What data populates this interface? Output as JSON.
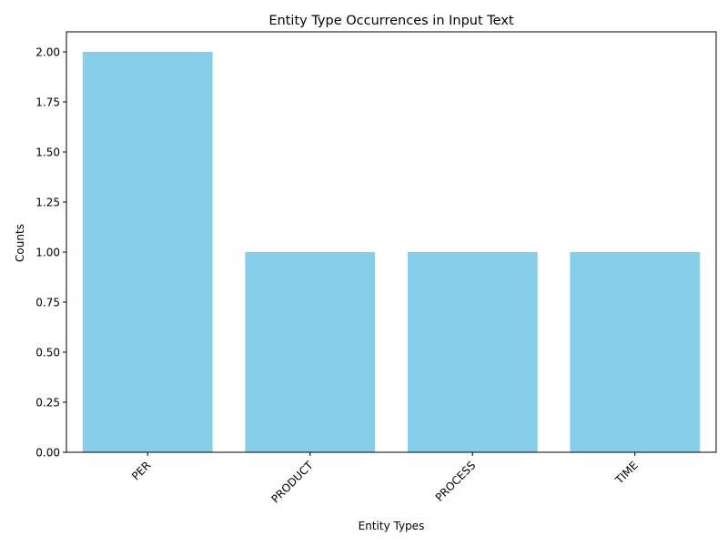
{
  "chart_data": {
    "type": "bar",
    "title": "Entity Type Occurrences in Input Text",
    "xlabel": "Entity Types",
    "ylabel": "Counts",
    "categories": [
      "PER",
      "PRODUCT",
      "PROCESS",
      "TIME"
    ],
    "values": [
      2,
      1,
      1,
      1
    ],
    "ylim": [
      0,
      2.1
    ],
    "yticks": [
      "0.00",
      "0.25",
      "0.50",
      "0.75",
      "1.00",
      "1.25",
      "1.50",
      "1.75",
      "2.00"
    ],
    "bar_color": "#87CEEB",
    "grid": false,
    "xtick_rotation": 45
  }
}
